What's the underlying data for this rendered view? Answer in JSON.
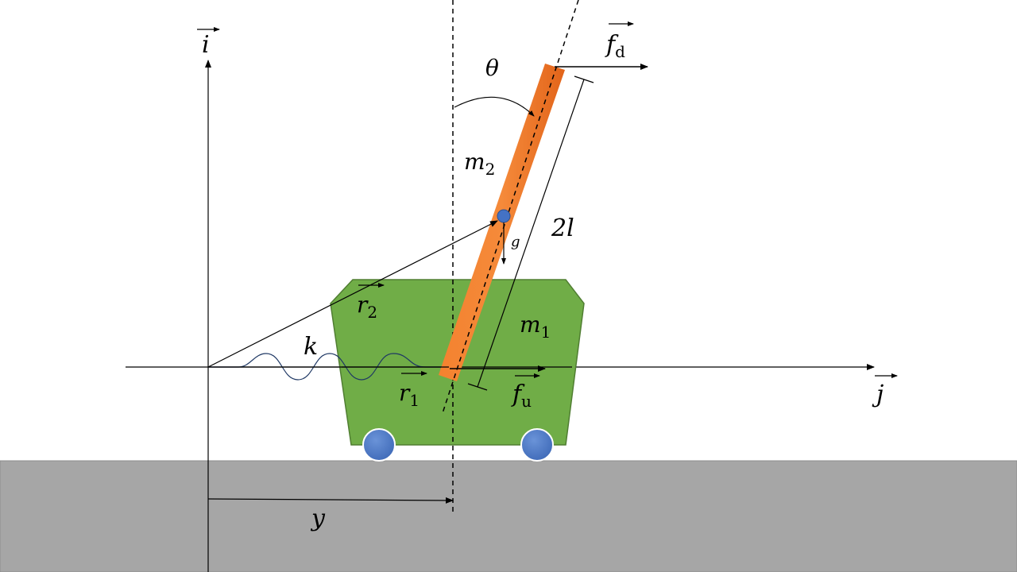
{
  "labels": {
    "i": "i",
    "j": "j",
    "theta": "θ",
    "fd": {
      "base": "f",
      "sub": "d"
    },
    "fu": {
      "base": "f",
      "sub": "u"
    },
    "m2": {
      "base": "m",
      "sub": "2"
    },
    "m1": {
      "base": "m",
      "sub": "1"
    },
    "r2": {
      "base": "r",
      "sub": "2"
    },
    "r1": {
      "base": "r",
      "sub": "1"
    },
    "length": "2l",
    "g": "g",
    "k": "k",
    "y": "y"
  },
  "colors": {
    "ground": "#a6a6a6",
    "cart": "#70ad47",
    "cart_stroke": "#507e32",
    "pendulum_light": "#f4822f",
    "pendulum_dark": "#e2641a",
    "wheel": "#4472c4",
    "wheel_stroke": "#2f528f",
    "ink": "#000000"
  }
}
